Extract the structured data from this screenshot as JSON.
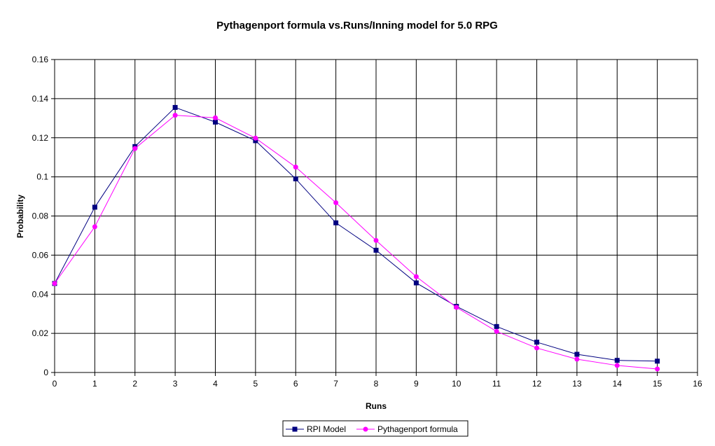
{
  "colors": {
    "series_rpi": "#000080",
    "series_pyth": "#FF00FF",
    "grid": "#000000",
    "background": "#FFFFFF"
  },
  "chart_data": {
    "type": "line",
    "title": "Pythagenport formula vs.Runs/Inning model for 5.0 RPG",
    "xlabel": "Runs",
    "ylabel": "Probability",
    "xlim": [
      0,
      16
    ],
    "ylim": [
      0,
      0.16
    ],
    "x_ticks": [
      "0",
      "1",
      "2",
      "3",
      "4",
      "5",
      "6",
      "7",
      "8",
      "9",
      "10",
      "11",
      "12",
      "13",
      "14",
      "15",
      "16"
    ],
    "y_ticks": [
      "0",
      "0.02",
      "0.04",
      "0.06",
      "0.08",
      "0.1",
      "0.12",
      "0.14",
      "0.16"
    ],
    "grid": true,
    "legend_position": "bottom",
    "series": [
      {
        "name": "RPI Model",
        "marker": "square",
        "color": "#000080",
        "x": [
          0,
          1,
          2,
          3,
          4,
          5,
          6,
          7,
          8,
          9,
          10,
          11,
          12,
          13,
          14,
          15
        ],
        "values": [
          0.0455,
          0.0845,
          0.1155,
          0.1355,
          0.128,
          0.1185,
          0.099,
          0.0765,
          0.0625,
          0.0458,
          0.0338,
          0.0235,
          0.0155,
          0.0093,
          0.0062,
          0.0058
        ]
      },
      {
        "name": "Pythagenport formula",
        "marker": "diamond",
        "color": "#FF00FF",
        "x": [
          0,
          1,
          2,
          3,
          4,
          5,
          6,
          7,
          8,
          9,
          10,
          11,
          12,
          13,
          14,
          15
        ],
        "values": [
          0.0455,
          0.0745,
          0.1145,
          0.1315,
          0.1302,
          0.1198,
          0.105,
          0.0868,
          0.0675,
          0.049,
          0.0333,
          0.021,
          0.0125,
          0.0068,
          0.0036,
          0.0018
        ]
      }
    ]
  }
}
